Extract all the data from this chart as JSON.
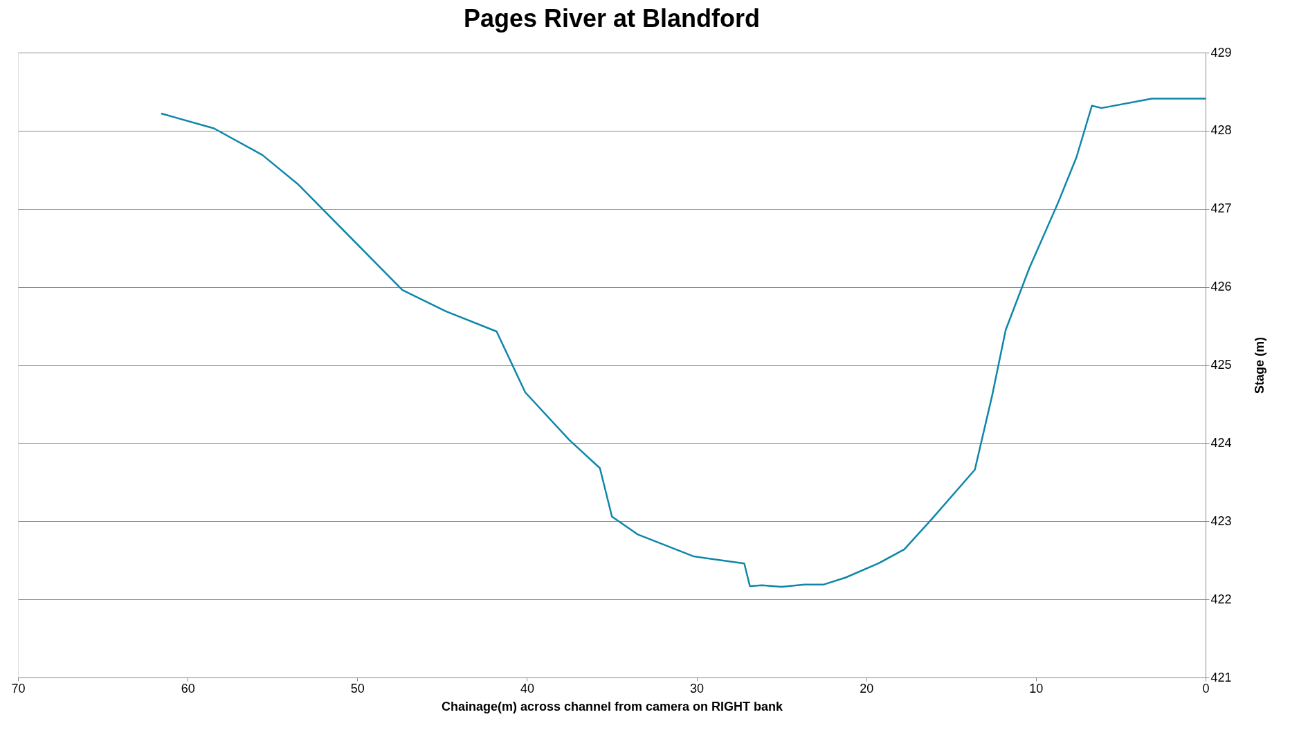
{
  "chart_data": {
    "type": "line",
    "title": "Pages River at Blandford",
    "xlabel": "Chainage(m) across channel from camera on RIGHT bank",
    "ylabel": "Stage  (m)",
    "x": [
      61.56,
      58.45,
      55.6,
      53.47,
      47.34,
      44.8,
      41.79,
      40.1,
      37.5,
      35.7,
      34.99,
      33.46,
      30.16,
      27.19,
      26.86,
      26.14,
      24.99,
      23.65,
      22.5,
      21.21,
      19.29,
      17.76,
      16.13,
      13.6,
      12.59,
      11.78,
      10.39,
      8.71,
      7.61,
      6.7,
      6.13,
      3.16,
      0
    ],
    "series": [
      {
        "color": "#0e86aa",
        "values": [
          428.22,
          428.03,
          427.69,
          427.31,
          425.96,
          425.69,
          425.43,
          424.65,
          424.04,
          423.68,
          423.06,
          422.83,
          422.55,
          422.46,
          422.17,
          422.18,
          422.16,
          422.19,
          422.19,
          422.28,
          422.46,
          422.64,
          423.03,
          423.66,
          424.6,
          425.45,
          426.24,
          427.07,
          427.66,
          428.32,
          428.29,
          428.41,
          428.41
        ]
      }
    ],
    "xlim": [
      70,
      0
    ],
    "xticks": [
      70,
      60,
      50,
      40,
      30,
      20,
      10,
      0
    ],
    "ylim": [
      421,
      429
    ],
    "yticks": [
      421,
      422,
      423,
      424,
      425,
      426,
      427,
      428,
      429
    ],
    "grid": "y",
    "legend": false,
    "marker": "none",
    "line_style": "solid"
  }
}
